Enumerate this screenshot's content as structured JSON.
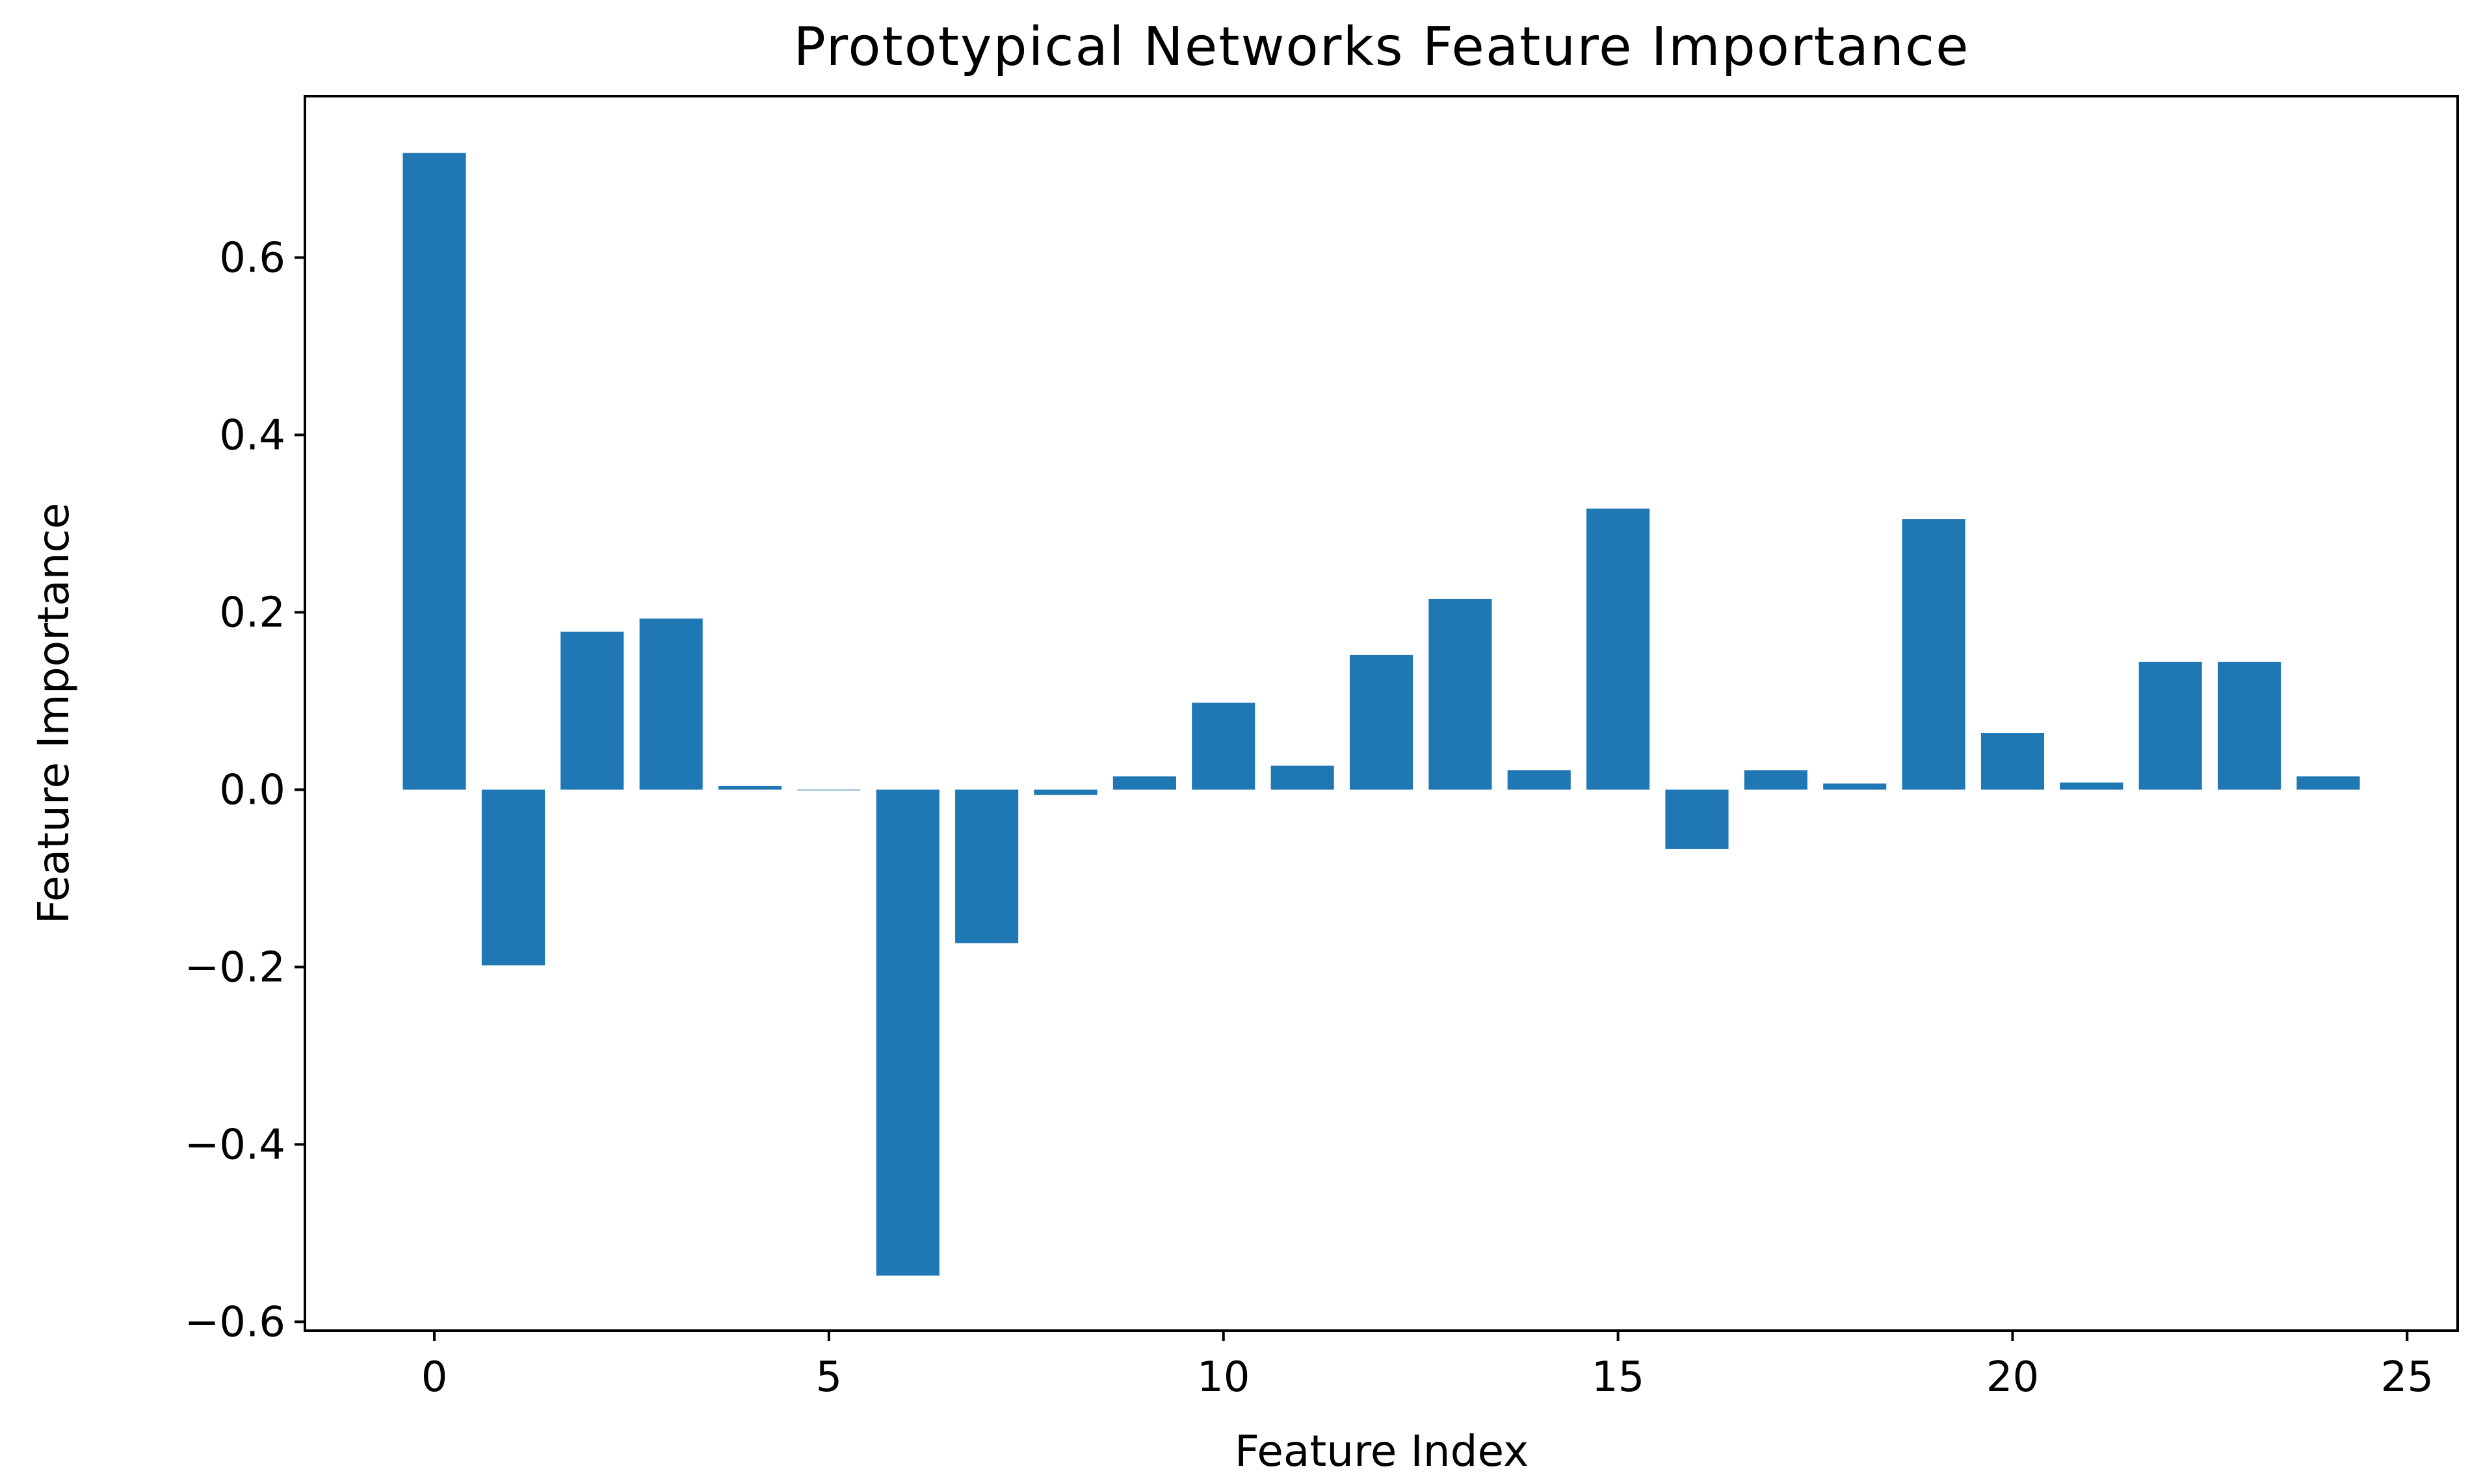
{
  "chart_data": {
    "type": "bar",
    "title": "Prototypical Networks Feature Importance",
    "xlabel": "Feature Index",
    "ylabel": "Feature Importance",
    "x": [
      0,
      1,
      2,
      3,
      4,
      5,
      6,
      7,
      8,
      9,
      10,
      11,
      12,
      13,
      14,
      15,
      16,
      17,
      18,
      19,
      20,
      21,
      22,
      23,
      24
    ],
    "values": [
      0.718,
      -0.198,
      0.178,
      0.193,
      0.004,
      0.0,
      -0.548,
      -0.173,
      -0.006,
      0.015,
      0.098,
      0.027,
      0.152,
      0.215,
      0.022,
      0.317,
      -0.067,
      0.022,
      0.007,
      0.305,
      0.064,
      0.008,
      0.144,
      0.144,
      0.015
    ],
    "xlim": [
      -1.64,
      25.64
    ],
    "ylim": [
      -0.61,
      0.782
    ],
    "xticks": [
      0,
      5,
      10,
      15,
      20,
      25
    ],
    "xtick_labels": [
      "0",
      "5",
      "10",
      "15",
      "20",
      "25"
    ],
    "yticks": [
      -0.6,
      -0.4,
      -0.2,
      0.0,
      0.2,
      0.4,
      0.6
    ],
    "ytick_labels": [
      "−0.6",
      "−0.4",
      "−0.2",
      "0.0",
      "0.2",
      "0.4",
      "0.6"
    ],
    "bar_color": "#1f77b4",
    "grid": false,
    "legend": "none"
  }
}
